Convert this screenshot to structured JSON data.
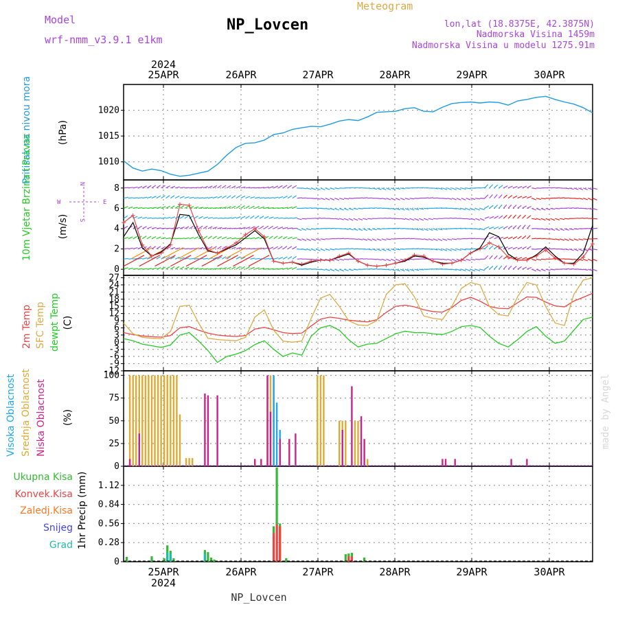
{
  "header": {
    "left_title": "Model",
    "left_subtitle": "wrf-nmm_v3.9.1 e1km",
    "title": "NP_Lovcen",
    "right_title": "Meteogram",
    "info_line1": "lon,lat (18.8375E, 42.3875N)",
    "info_line2": "Nadmorska Visina 1459m",
    "info_line3": "Nadmorska Visina u modelu 1275.91m",
    "year_top": "2024",
    "year_bottom": "2024",
    "footer": "NP_Lovcen",
    "watermark": "made by Angel"
  },
  "colors": {
    "pressure": "#1e9be6",
    "temp2m": "#ee4444",
    "sfc": "#ddaa44",
    "dewpt": "#22cc22",
    "high_cloud": "#20a8ee",
    "mid_cloud": "#ddaa33",
    "low_cloud": "#cc2288",
    "purple": "#aa44dd",
    "total_precip": "#33bb33",
    "conv_precip": "#ee4444",
    "frozen_precip": "#ff7722",
    "snow": "#4444ee",
    "graupel": "#22bbaa"
  },
  "chart_data": [
    {
      "type": "line",
      "name": "pressure",
      "ylabel_side": "Pritisak na nivou mora",
      "ylabel": "(hPa)",
      "yticks": [
        "1010",
        "1015",
        "1020"
      ],
      "ylim": [
        1006.5,
        1025
      ],
      "x_unit": "hours from 2024-04-24 12 UTC",
      "xlim": [
        0,
        150
      ],
      "xticks": [
        "25APR",
        "26APR",
        "27APR",
        "28APR",
        "29APR",
        "30APR"
      ],
      "x": [
        0,
        3,
        6,
        9,
        12,
        15,
        18,
        21,
        24,
        27,
        30,
        33,
        36,
        39,
        42,
        45,
        48,
        51,
        54,
        57,
        60,
        63,
        66,
        69,
        72,
        75,
        78,
        81,
        84,
        87,
        90,
        93,
        96,
        99,
        102,
        105,
        108,
        111,
        114,
        117,
        120,
        123,
        126,
        129,
        132,
        135,
        138,
        141,
        144,
        147,
        150
      ],
      "values": [
        1010.2,
        1008.8,
        1008.2,
        1008.6,
        1008.3,
        1007.6,
        1007.2,
        1007.4,
        1007.8,
        1008.2,
        1009.5,
        1011.3,
        1012.8,
        1013.6,
        1013.7,
        1014.2,
        1015.3,
        1015.6,
        1016.3,
        1016.6,
        1016.9,
        1016.8,
        1017.3,
        1017.9,
        1018.2,
        1018.0,
        1018.7,
        1019.6,
        1019.7,
        1019.8,
        1020.3,
        1020.5,
        1019.8,
        1019.7,
        1020.6,
        1021.3,
        1021.5,
        1021.6,
        1021.4,
        1021.6,
        1021.5,
        1021.0,
        1021.8,
        1022.1,
        1022.5,
        1022.7,
        1022.1,
        1021.6,
        1021.2,
        1020.5,
        1019.5
      ]
    },
    {
      "type": "line",
      "name": "wind",
      "ylabel_side": "10m Vjetar Brzina i Pravac",
      "ylabel": "(m/s)",
      "compass": [
        "W",
        "E",
        "N",
        "S"
      ],
      "yticks": [
        "0",
        "2",
        "4",
        "6",
        "8"
      ],
      "ylim": [
        -0.6,
        8.8
      ],
      "xlim": [
        0,
        150
      ],
      "x": [
        0,
        3,
        6,
        9,
        12,
        15,
        18,
        21,
        24,
        27,
        30,
        33,
        36,
        39,
        42,
        45,
        48,
        51,
        54,
        57,
        60,
        63,
        66,
        69,
        72,
        75,
        78,
        81,
        84,
        87,
        90,
        93,
        96,
        99,
        102,
        105,
        108,
        111,
        114,
        117,
        120,
        123,
        126,
        129,
        132,
        135,
        138,
        141,
        144,
        147,
        150
      ],
      "values": [
        4.6,
        5.3,
        2.4,
        1.3,
        1.6,
        2.4,
        6.4,
        6.3,
        3.8,
        1.9,
        1.6,
        2.1,
        2.6,
        3.4,
        4.0,
        3.2,
        0.8,
        0.6,
        0.7,
        0.5,
        0.8,
        0.9,
        0.9,
        1.3,
        1.6,
        0.8,
        0.4,
        0.3,
        0.4,
        0.6,
        0.9,
        1.4,
        1.3,
        0.8,
        0.5,
        0.6,
        0.9,
        1.6,
        2.0,
        2.6,
        2.2,
        1.2,
        0.9,
        0.9,
        1.3,
        1.9,
        1.1,
        0.6,
        0.5,
        1.2,
        2.5
      ],
      "gust": [
        3.2,
        4.6,
        2.1,
        1.3,
        1.7,
        2.5,
        5.4,
        5.3,
        3.4,
        1.8,
        1.6,
        2.0,
        2.4,
        3.1,
        3.8,
        3.0,
        0.8,
        0.6,
        0.7,
        0.4,
        0.7,
        0.9,
        0.9,
        1.2,
        1.5,
        0.8,
        0.4,
        0.3,
        0.4,
        0.6,
        0.8,
        1.3,
        1.2,
        0.8,
        0.6,
        0.6,
        0.9,
        1.6,
        2.1,
        3.6,
        3.2,
        1.5,
        0.9,
        0.9,
        1.4,
        2.2,
        1.3,
        0.6,
        0.6,
        1.6,
        4.3
      ]
    },
    {
      "type": "line",
      "name": "temperature",
      "ylabel_side_1": "2m Temp",
      "ylabel_side_2": "SFC Temp",
      "ylabel_side_3": "dewpt Temp",
      "ylabel": "(C)",
      "yticks": [
        "-12",
        "-9",
        "-6",
        "-3",
        "0",
        "3",
        "6",
        "9",
        "12",
        "15",
        "18",
        "21",
        "24",
        "27"
      ],
      "ylim": [
        -12,
        28
      ],
      "xlim": [
        0,
        150
      ],
      "x": [
        0,
        3,
        6,
        9,
        12,
        15,
        18,
        21,
        24,
        27,
        30,
        33,
        36,
        39,
        42,
        45,
        48,
        51,
        54,
        57,
        60,
        63,
        66,
        69,
        72,
        75,
        78,
        81,
        84,
        87,
        90,
        93,
        96,
        99,
        102,
        105,
        108,
        111,
        114,
        117,
        120,
        123,
        126,
        129,
        132,
        135,
        138,
        141,
        144,
        147,
        150
      ],
      "series": [
        {
          "name": "2m Temp",
          "values": [
            4.0,
            3.2,
            2.6,
            2.3,
            2.1,
            2.8,
            6.0,
            6.5,
            5.0,
            3.8,
            3.0,
            2.6,
            2.4,
            2.8,
            5.5,
            6.2,
            5.2,
            4.0,
            3.6,
            3.8,
            6.8,
            9.6,
            10.5,
            10.0,
            9.2,
            8.8,
            8.5,
            9.4,
            12.5,
            15.0,
            15.5,
            14.8,
            13.6,
            12.8,
            12.6,
            14.5,
            17.5,
            18.8,
            17.2,
            15.0,
            14.2,
            14.0,
            16.5,
            19.0,
            18.8,
            16.8,
            15.2,
            14.8,
            17.2,
            18.8,
            20.5
          ]
        },
        {
          "name": "SFC Temp",
          "values": [
            8.0,
            3.5,
            2.0,
            1.6,
            1.5,
            4.5,
            15.0,
            15.5,
            8.0,
            1.6,
            1.1,
            0.8,
            0.6,
            2.0,
            10.5,
            13.5,
            5.0,
            0.5,
            0.0,
            0.5,
            10.0,
            18.5,
            20.0,
            15.0,
            9.0,
            7.2,
            7.0,
            9.0,
            20.0,
            24.0,
            24.5,
            19.0,
            11.0,
            10.0,
            9.5,
            15.0,
            22.5,
            25.0,
            24.0,
            15.0,
            11.5,
            11.0,
            19.0,
            25.0,
            24.0,
            15.0,
            8.0,
            7.0,
            20.0,
            26.0,
            27.0
          ]
        },
        {
          "name": "dewpt Temp",
          "values": [
            1.5,
            0.6,
            -0.8,
            -1.5,
            -2.2,
            -1.2,
            3.0,
            4.0,
            0.5,
            -3.5,
            -8.5,
            -6.0,
            -5.0,
            -3.5,
            -1.0,
            0.6,
            -3.0,
            -6.0,
            -4.5,
            -5.5,
            2.5,
            6.0,
            7.0,
            5.0,
            1.0,
            -2.0,
            -0.8,
            -0.5,
            1.5,
            3.5,
            4.6,
            4.0,
            4.0,
            3.5,
            3.2,
            4.5,
            6.5,
            7.0,
            6.2,
            2.5,
            -0.5,
            -2.0,
            1.0,
            4.5,
            6.5,
            2.5,
            -0.5,
            0.5,
            5.0,
            9.5,
            10.5
          ]
        }
      ]
    },
    {
      "type": "bar",
      "name": "clouds",
      "ylabel_side_1": "Visoka Oblacnost",
      "ylabel_side_2": "Srednja Oblacnost",
      "ylabel_side_3": "Niska Oblacnost",
      "ylabel": "(%)",
      "yticks": [
        "0",
        "25",
        "50",
        "75",
        "100"
      ],
      "ylim": [
        0,
        105
      ],
      "xlim": [
        0,
        150
      ],
      "series": [
        {
          "name": "Srednja Oblacnost",
          "points": [
            [
              2,
              100
            ],
            [
              3,
              100
            ],
            [
              4,
              100
            ],
            [
              5,
              100
            ],
            [
              6,
              100
            ],
            [
              7,
              100
            ],
            [
              8,
              100
            ],
            [
              9,
              100
            ],
            [
              10,
              100
            ],
            [
              11,
              100
            ],
            [
              12,
              100
            ],
            [
              13,
              100
            ],
            [
              14,
              100
            ],
            [
              15,
              100
            ],
            [
              16,
              100
            ],
            [
              17,
              100
            ],
            [
              18,
              57
            ],
            [
              20,
              9
            ],
            [
              21,
              9
            ],
            [
              22,
              9
            ],
            [
              46,
              100
            ],
            [
              47,
              100
            ],
            [
              48,
              100
            ],
            [
              62,
              100
            ],
            [
              63,
              100
            ],
            [
              64,
              100
            ],
            [
              69,
              50
            ],
            [
              70,
              50
            ],
            [
              71,
              50
            ],
            [
              74,
              50
            ],
            [
              75,
              50
            ],
            [
              78,
              8
            ]
          ]
        },
        {
          "name": "Visoka Oblacnost",
          "points": [
            [
              48,
              100
            ],
            [
              49,
              70
            ],
            [
              50,
              40
            ]
          ]
        },
        {
          "name": "Niska Oblacnost",
          "points": [
            [
              2,
              8
            ],
            [
              5,
              36
            ],
            [
              26,
              80
            ],
            [
              27,
              78
            ],
            [
              30,
              78
            ],
            [
              42,
              8
            ],
            [
              44,
              8
            ],
            [
              46,
              100
            ],
            [
              47,
              60
            ],
            [
              50,
              30
            ],
            [
              53,
              30
            ],
            [
              55,
              36
            ],
            [
              70,
              40
            ],
            [
              73,
              88
            ],
            [
              76,
              55
            ],
            [
              77,
              30
            ],
            [
              102,
              8
            ],
            [
              103,
              8
            ],
            [
              106,
              8
            ],
            [
              124,
              8
            ],
            [
              129,
              8
            ]
          ]
        }
      ]
    },
    {
      "type": "bar",
      "name": "precipitation",
      "legend_1": "Ukupna Kisa",
      "legend_2": "Konvek.Kisa",
      "legend_3": "Zaledj.Kisa",
      "legend_4": "Snijeg",
      "legend_5": "Grad",
      "ylabel": "1hr Precip (mm)",
      "yticks": [
        "0",
        "0.28",
        "0.56",
        "0.84",
        "1.12"
      ],
      "ylim": [
        0,
        1.4
      ],
      "xlim": [
        0,
        150
      ],
      "series": [
        {
          "name": "Ukupna Kisa",
          "points": [
            [
              1,
              0.07
            ],
            [
              9,
              0.08
            ],
            [
              13,
              0.05
            ],
            [
              14,
              0.24
            ],
            [
              15,
              0.16
            ],
            [
              16,
              0.05
            ],
            [
              26,
              0.17
            ],
            [
              27,
              0.14
            ],
            [
              28,
              0.06
            ],
            [
              29,
              0.03
            ],
            [
              48,
              0.52
            ],
            [
              49,
              1.38
            ],
            [
              50,
              0.56
            ],
            [
              52,
              0.05
            ],
            [
              71,
              0.11
            ],
            [
              72,
              0.12
            ],
            [
              73,
              0.13
            ],
            [
              77,
              0.06
            ]
          ]
        },
        {
          "name": "Konvek.Kisa",
          "points": [
            [
              48,
              0.42
            ],
            [
              49,
              0.55
            ],
            [
              50,
              0.52
            ],
            [
              72,
              0.08
            ],
            [
              73,
              0.08
            ]
          ]
        },
        {
          "name": "Grad",
          "points": [
            [
              14,
              0.14
            ],
            [
              15,
              0.12
            ],
            [
              26,
              0.12
            ]
          ]
        }
      ]
    }
  ]
}
